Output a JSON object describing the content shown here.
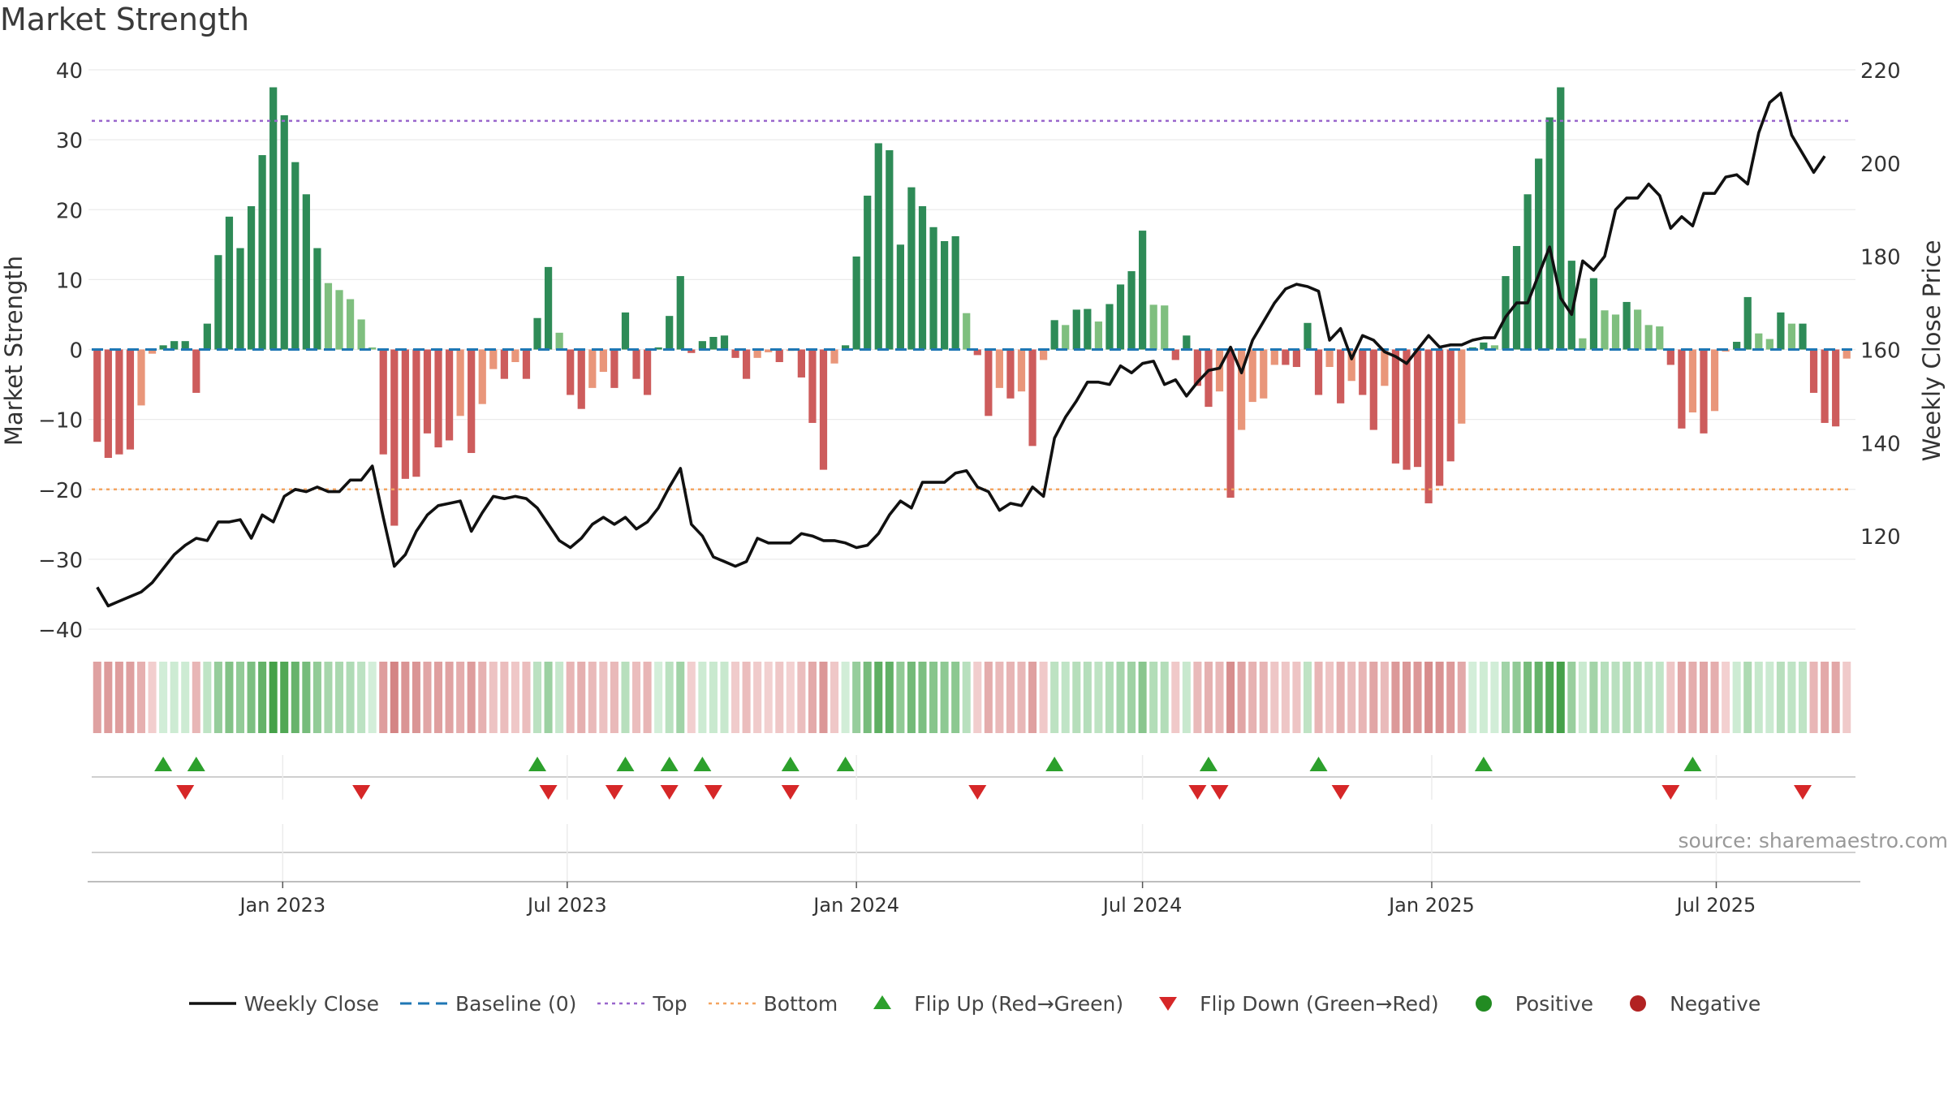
{
  "title": "Market Strength",
  "source": "source: sharemaestro.com",
  "colors": {
    "strong_green": "#2e8b57",
    "light_green": "#7fbf7f",
    "strong_red": "#cd5c5c",
    "light_red": "#e9967a",
    "close_line": "#111111",
    "baseline": "#1f77b4",
    "top": "#9966cc",
    "bottom": "#f4a460",
    "flip_up": "#2ca02c",
    "flip_down": "#d62728",
    "positive": "#228b22",
    "negative": "#b22222"
  },
  "legend": [
    {
      "label": "Weekly Close",
      "symbol": "line-black"
    },
    {
      "label": "Baseline (0)",
      "symbol": "dash-blue"
    },
    {
      "label": "Top",
      "symbol": "dot-purple"
    },
    {
      "label": "Bottom",
      "symbol": "dot-orange"
    },
    {
      "label": "Flip Up (Red→Green)",
      "symbol": "triangle-up-green"
    },
    {
      "label": "Flip Down (Green→Red)",
      "symbol": "triangle-down-red"
    },
    {
      "label": "Positive",
      "symbol": "circle-green"
    },
    {
      "label": "Negative",
      "symbol": "circle-red"
    }
  ],
  "chart_data": {
    "type": "bar",
    "title": "Market Strength",
    "frequency": "weekly",
    "first_week": "2022-09-05",
    "x_tick_labels": [
      "Jan 2023",
      "Jul 2023",
      "Jan 2024",
      "Jul 2024",
      "Jan 2025",
      "Jul 2025"
    ],
    "x_tick_dates": [
      "2023-01-01",
      "2023-07-01",
      "2024-01-01",
      "2024-07-01",
      "2025-01-01",
      "2025-07-01"
    ],
    "ylabel_left": "Market Strength",
    "ylabel_right": "Weekly Close Price",
    "ylim_left": [
      -40,
      40
    ],
    "yticks_left": [
      -40,
      -30,
      -20,
      -10,
      0,
      10,
      20,
      30,
      40
    ],
    "ylim_right": [
      100,
      220
    ],
    "yticks_right": [
      120,
      140,
      160,
      180,
      200,
      220
    ],
    "top_level": 32.7,
    "bottom_level": -20,
    "grid": true,
    "legend_position": "bottom",
    "series": [
      {
        "name": "Market Strength",
        "axis": "left",
        "values": [
          -13.2,
          -15.5,
          -15,
          -14.3,
          -8,
          -0.6,
          0.6,
          1.2,
          1.2,
          -6.2,
          3.7,
          13.5,
          19,
          14.5,
          20.5,
          27.8,
          37.5,
          33.5,
          26.8,
          22.2,
          14.5,
          9.5,
          8.5,
          7.2,
          4.3,
          0.3,
          -15,
          -25.2,
          -18.5,
          -18.2,
          -12,
          -14,
          -13,
          -9.5,
          -14.8,
          -7.8,
          -2.8,
          -4.2,
          -1.8,
          -4.2,
          4.5,
          11.8,
          2.4,
          -6.5,
          -8.5,
          -5.5,
          -3.2,
          -5.5,
          5.3,
          -4.2,
          -6.5,
          0.3,
          4.8,
          10.5,
          -0.5,
          1.2,
          1.8,
          2.0,
          -1.2,
          -4.2,
          -1.2,
          -0.4,
          -1.8,
          -0.2,
          -4.0,
          -10.5,
          -17.2,
          -2.0,
          0.6,
          13.3,
          22.0,
          29.5,
          28.5,
          15.0,
          23.2,
          20.5,
          17.5,
          15.5,
          16.2,
          5.2,
          -0.8,
          -9.5,
          -5.5,
          -7.0,
          -6.0,
          -13.8,
          -1.5,
          4.2,
          3.5,
          5.7,
          5.8,
          4.0,
          6.5,
          9.3,
          11.2,
          17.0,
          6.4,
          6.3,
          -1.5,
          2.0,
          -5.2,
          -8.2,
          -6.0,
          -21.2,
          -11.5,
          -7.5,
          -7.0,
          -2.2,
          -2.2,
          -2.5,
          3.8,
          -6.5,
          -2.5,
          -7.7,
          -4.5,
          -6.5,
          -11.5,
          -5.2,
          -16.3,
          -17.2,
          -16.8,
          -22,
          -19.5,
          -16.0,
          -10.6,
          0.3,
          1.0,
          0.6,
          10.5,
          14.8,
          22.2,
          27.3,
          33.2,
          37.5,
          12.7,
          1.6,
          10.2,
          5.6,
          5.0,
          6.8,
          5.7,
          3.5,
          3.3,
          -2.2,
          -11.3,
          -9.0,
          -12,
          -8.8,
          -0.3,
          1.1,
          7.5,
          2.3,
          1.5,
          5.3,
          3.7,
          3.7,
          -6.2,
          -10.5,
          -11.0,
          -1.3
        ]
      },
      {
        "name": "Weekly Close",
        "axis": "right",
        "values": [
          109,
          105,
          106,
          107,
          108,
          110,
          113,
          116,
          118,
          119.5,
          119,
          123,
          123,
          123.5,
          119.5,
          124.5,
          123,
          128.5,
          130,
          129.5,
          130.5,
          129.5,
          129.5,
          132,
          132,
          135,
          124,
          113.5,
          116,
          121,
          124.5,
          126.5,
          127,
          127.5,
          121,
          125,
          128.5,
          128,
          128.5,
          128,
          126,
          122.5,
          119,
          117.5,
          119.5,
          122.5,
          124,
          122.5,
          124,
          121.5,
          123,
          126,
          130.5,
          134.5,
          122.5,
          120,
          115.5,
          114.5,
          113.5,
          114.5,
          119.5,
          118.5,
          118.5,
          118.5,
          120.5,
          120,
          119,
          119,
          118.5,
          117.5,
          118,
          120.5,
          124.5,
          127.5,
          126,
          131.5,
          131.5,
          131.5,
          133.5,
          134,
          130.5,
          129.5,
          125.5,
          127,
          126.5,
          130.5,
          128.5,
          141,
          145.5,
          149,
          153,
          153,
          152.5,
          156.5,
          155,
          157,
          157.5,
          152.5,
          153.5,
          150,
          153,
          155.5,
          156,
          160.5,
          155,
          162,
          166,
          170,
          173,
          174,
          173.5,
          172.5,
          162,
          164.5,
          158,
          163,
          162,
          159.5,
          158.5,
          157,
          160,
          163,
          160.5,
          161,
          161,
          162,
          162.5,
          162.5,
          167,
          170,
          170,
          176,
          182,
          171,
          167.5,
          179,
          177,
          180,
          190,
          192.5,
          192.5,
          195.5,
          193,
          186,
          188.5,
          186.5,
          193.5,
          193.5,
          197,
          197.5,
          195.5,
          206.5,
          213,
          215,
          206,
          202,
          198,
          201.5
        ]
      }
    ],
    "flips_up_index": [
      6,
      9,
      40,
      48,
      52,
      55,
      63,
      68,
      87,
      101,
      111,
      126,
      145
    ],
    "flips_down_index": [
      8,
      24,
      41,
      47,
      52,
      56,
      63,
      80,
      100,
      102,
      113,
      143,
      155
    ]
  }
}
